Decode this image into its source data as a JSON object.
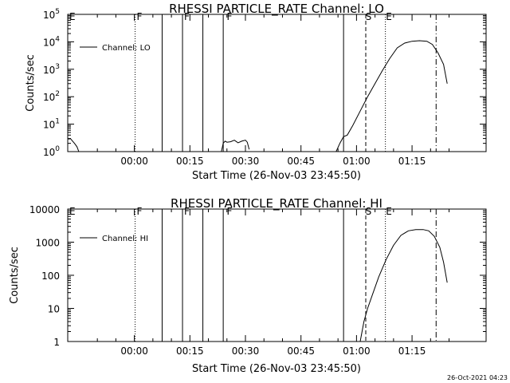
{
  "footer": {
    "timestamp": "26-Oct-2021 04:23"
  },
  "chart_data": [
    {
      "type": "line",
      "title": "RHESSI PARTICLE_RATE Channel: LO",
      "xlabel": "Start Time (26-Nov-03 23:45:50)",
      "ylabel": "Counts/sec",
      "yscale": "log",
      "xlim_minutes": [
        -18,
        95
      ],
      "ylim": [
        1,
        100000
      ],
      "xticks": [
        {
          "m": 0,
          "label": "00:00"
        },
        {
          "m": 15,
          "label": "00:15"
        },
        {
          "m": 30,
          "label": "00:30"
        },
        {
          "m": 45,
          "label": "00:45"
        },
        {
          "m": 60,
          "label": "01:00"
        },
        {
          "m": 75,
          "label": "01:15"
        }
      ],
      "yticks": [
        {
          "v": 1,
          "label": "10",
          "exp": "0"
        },
        {
          "v": 10,
          "label": "10",
          "exp": "1"
        },
        {
          "v": 100,
          "label": "10",
          "exp": "2"
        },
        {
          "v": 1000,
          "label": "10",
          "exp": "3"
        },
        {
          "v": 10000,
          "label": "10",
          "exp": "4"
        },
        {
          "v": 100000,
          "label": "10",
          "exp": "5"
        }
      ],
      "legend": "Channel: LO",
      "series": [
        {
          "segments": [
            [
              [
                -17.8,
                2.8
              ],
              [
                -17.3,
                3.0
              ],
              [
                -16.8,
                2.5
              ],
              [
                -16.2,
                2.0
              ],
              [
                -15.5,
                1.5
              ],
              [
                -15.0,
                1.0
              ]
            ],
            [
              [
                23.5,
                1.0
              ],
              [
                24.0,
                2.0
              ],
              [
                24.5,
                2.4
              ],
              [
                25.0,
                2.2
              ],
              [
                26.0,
                2.3
              ],
              [
                27.0,
                2.6
              ],
              [
                28.0,
                2.1
              ],
              [
                29.0,
                2.4
              ],
              [
                30.0,
                2.6
              ],
              [
                30.5,
                2.2
              ],
              [
                31.0,
                1.2
              ]
            ],
            [
              [
                54.5,
                1.0
              ],
              [
                55.5,
                2.0
              ],
              [
                56.5,
                3.5
              ],
              [
                57.5,
                4.0
              ],
              [
                59.0,
                9.0
              ],
              [
                61.0,
                30.0
              ],
              [
                63.0,
                100.0
              ],
              [
                65.0,
                300.0
              ],
              [
                67.0,
                900.0
              ],
              [
                69.0,
                2500.0
              ],
              [
                71.0,
                6000.0
              ],
              [
                73.0,
                9000.0
              ],
              [
                75.0,
                10500.0
              ],
              [
                77.0,
                11000.0
              ],
              [
                79.0,
                10500.0
              ],
              [
                80.5,
                8000.0
              ],
              [
                82.0,
                4000.0
              ],
              [
                83.5,
                1500.0
              ],
              [
                84.5,
                300.0
              ]
            ]
          ]
        }
      ],
      "flags": [
        {
          "m": -18.0,
          "label": "E"
        },
        {
          "m": 0.2,
          "label": "F"
        },
        {
          "m": 13.0,
          "label": "F"
        },
        {
          "m": 24.5,
          "label": "F"
        },
        {
          "m": 62.0,
          "label": "S"
        },
        {
          "m": 67.5,
          "label": "E"
        }
      ],
      "vlines": [
        {
          "m": 0.2,
          "style": "dotted"
        },
        {
          "m": 7.5,
          "style": "solid"
        },
        {
          "m": 13.0,
          "style": "solid"
        },
        {
          "m": 18.5,
          "style": "solid"
        },
        {
          "m": 24.0,
          "style": "solid"
        },
        {
          "m": 56.5,
          "style": "solid"
        },
        {
          "m": 62.5,
          "style": "dashed"
        },
        {
          "m": 67.8,
          "style": "dotted"
        },
        {
          "m": 81.5,
          "style": "dashdot"
        }
      ]
    },
    {
      "type": "line",
      "title": "RHESSI PARTICLE_RATE Channel: HI",
      "xlabel": "Start Time (26-Nov-03 23:45:50)",
      "ylabel": "Counts/sec",
      "yscale": "log",
      "xlim_minutes": [
        -18,
        95
      ],
      "ylim": [
        1,
        10000
      ],
      "xticks": [
        {
          "m": 0,
          "label": "00:00"
        },
        {
          "m": 15,
          "label": "00:15"
        },
        {
          "m": 30,
          "label": "00:30"
        },
        {
          "m": 45,
          "label": "00:45"
        },
        {
          "m": 60,
          "label": "01:00"
        },
        {
          "m": 75,
          "label": "01:15"
        }
      ],
      "yticks": [
        {
          "v": 1,
          "label": "1"
        },
        {
          "v": 10,
          "label": "10"
        },
        {
          "v": 100,
          "label": "100"
        },
        {
          "v": 1000,
          "label": "1000"
        },
        {
          "v": 10000,
          "label": "10000"
        }
      ],
      "legend": "Channel: HI",
      "series": [
        {
          "segments": [
            [
              [
                61.0,
                1.0
              ],
              [
                62.0,
                4.0
              ],
              [
                63.0,
                10.0
              ],
              [
                64.5,
                30.0
              ],
              [
                66.0,
                90.0
              ],
              [
                68.0,
                300.0
              ],
              [
                70.0,
                800.0
              ],
              [
                72.0,
                1600.0
              ],
              [
                74.0,
                2200.0
              ],
              [
                76.0,
                2400.0
              ],
              [
                78.0,
                2400.0
              ],
              [
                79.5,
                2200.0
              ],
              [
                81.0,
                1500.0
              ],
              [
                82.5,
                700.0
              ],
              [
                83.5,
                250.0
              ],
              [
                84.5,
                60.0
              ]
            ]
          ]
        }
      ],
      "flags": [
        {
          "m": -18.0,
          "label": "E"
        },
        {
          "m": 0.2,
          "label": "F"
        },
        {
          "m": 13.0,
          "label": "F"
        },
        {
          "m": 24.5,
          "label": "F"
        },
        {
          "m": 62.0,
          "label": "S"
        },
        {
          "m": 67.5,
          "label": "E"
        }
      ],
      "vlines": [
        {
          "m": 0.2,
          "style": "dotted"
        },
        {
          "m": 7.5,
          "style": "solid"
        },
        {
          "m": 13.0,
          "style": "solid"
        },
        {
          "m": 18.5,
          "style": "solid"
        },
        {
          "m": 24.0,
          "style": "solid"
        },
        {
          "m": 56.5,
          "style": "solid"
        },
        {
          "m": 62.5,
          "style": "dashed"
        },
        {
          "m": 67.8,
          "style": "dotted"
        },
        {
          "m": 81.5,
          "style": "dashdot"
        }
      ]
    }
  ]
}
